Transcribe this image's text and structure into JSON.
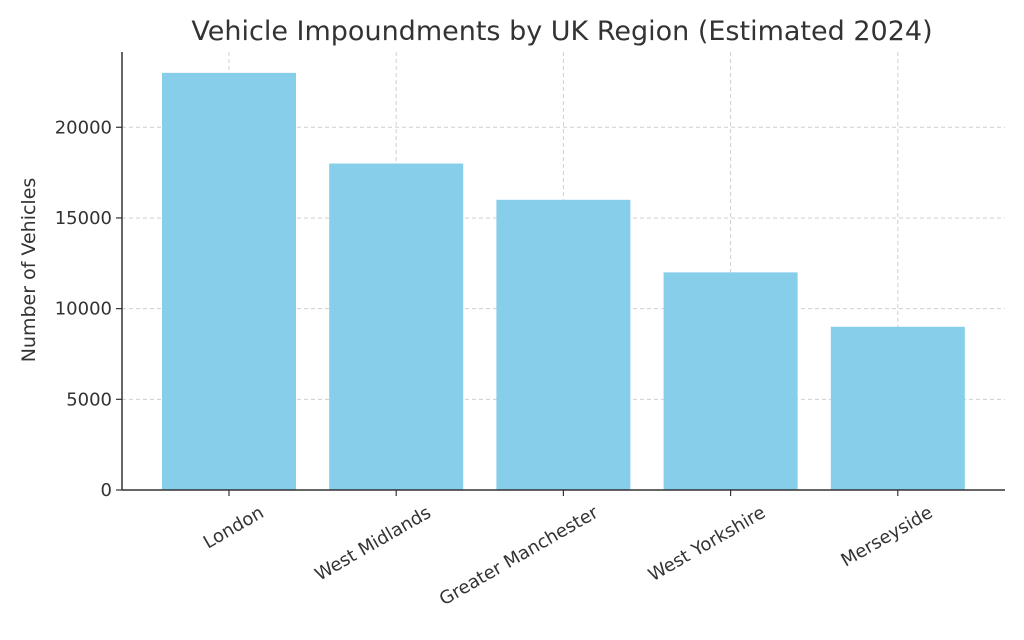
{
  "chart_data": {
    "type": "bar",
    "title": "Vehicle Impoundments by UK Region (Estimated 2024)",
    "xlabel": "",
    "ylabel": "Number of Vehicles",
    "categories": [
      "London",
      "West Midlands",
      "Greater Manchester",
      "West Yorkshire",
      "Merseyside"
    ],
    "values": [
      23000,
      18000,
      16000,
      12000,
      9000
    ],
    "ylim": [
      0,
      24150
    ],
    "yticks": [
      0,
      5000,
      10000,
      15000,
      20000
    ],
    "grid": true,
    "bar_color": "#87ceeb",
    "x_tick_rotation": "30deg"
  }
}
